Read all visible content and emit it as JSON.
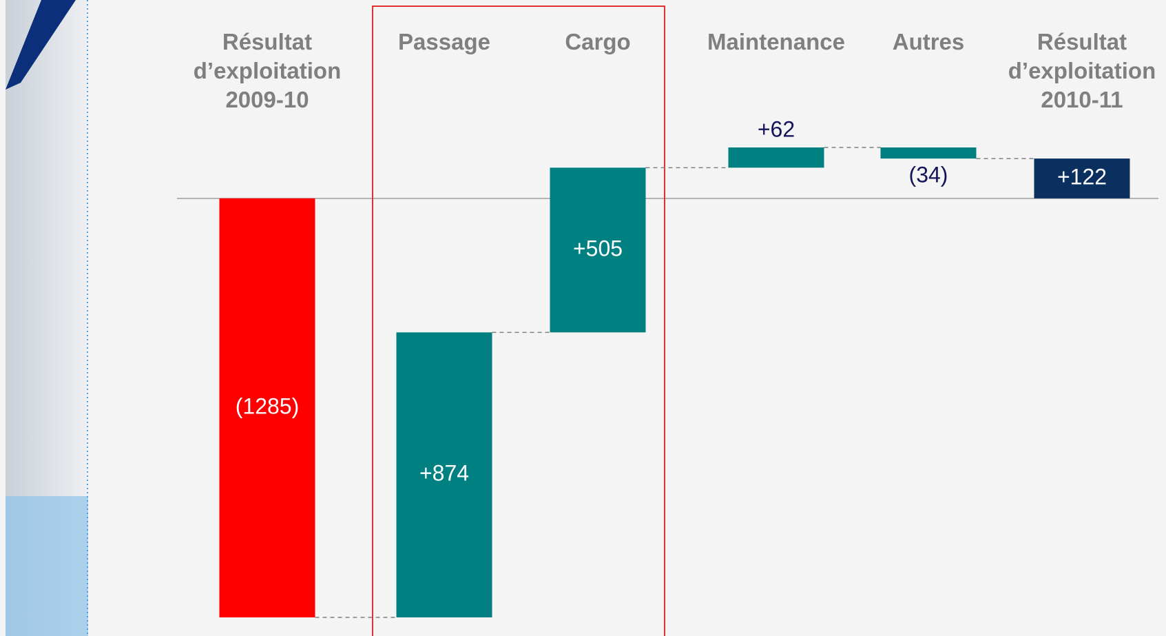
{
  "chart_data": {
    "type": "waterfall",
    "categories": [
      "Résultat d’exploitation 2009-10",
      "Passage",
      "Cargo",
      "Maintenance",
      "Autres",
      "Résultat d’exploitation 2010-11"
    ],
    "values": [
      -1285,
      874,
      505,
      62,
      -34,
      122
    ],
    "value_labels": [
      "(1285)",
      "+874",
      "+505",
      "+62",
      "(34)",
      "+122"
    ],
    "is_total": [
      false,
      false,
      false,
      false,
      false,
      true
    ],
    "colors": [
      "#ff0000",
      "#008080",
      "#008080",
      "#008080",
      "#008080",
      "#0b2f5f"
    ]
  }
}
